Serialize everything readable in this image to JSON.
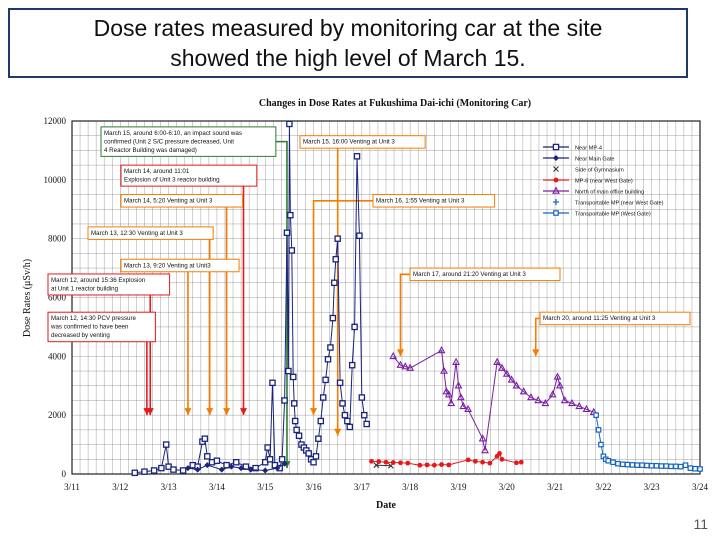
{
  "slide": {
    "title_line1": "Dose rates measured by monitoring car at the site",
    "title_line2": "showed the high level of March 15.",
    "page_number": "11"
  },
  "chart_data": {
    "type": "scatter",
    "title": "Changes in Dose Rates at Fukushima Dai-ichi (Monitoring Car)",
    "xlabel": "Date",
    "ylabel": "Dose Rates (μSv/h)",
    "xlim": [
      "3/11",
      "3/24"
    ],
    "ylim": [
      0,
      12000
    ],
    "grid": true,
    "legend_position": "top-right",
    "xticks": [
      "3/11",
      "3/12",
      "3/13",
      "3/14",
      "3/15",
      "3/16",
      "3/17",
      "3/18",
      "3/19",
      "3/20",
      "3/21",
      "3/22",
      "3/23",
      "3/24"
    ],
    "yticks": [
      0,
      2000,
      4000,
      6000,
      8000,
      10000,
      12000
    ],
    "series": [
      {
        "name": "Near MP-4",
        "color": "#1a237e",
        "marker": "square",
        "points": [
          [
            12.3,
            40
          ],
          [
            12.5,
            80
          ],
          [
            12.7,
            120
          ],
          [
            12.85,
            200
          ],
          [
            12.95,
            1000
          ],
          [
            13.0,
            250
          ],
          [
            13.1,
            150
          ],
          [
            13.3,
            120
          ],
          [
            13.5,
            300
          ],
          [
            13.6,
            250
          ],
          [
            13.7,
            1100
          ],
          [
            13.75,
            1200
          ],
          [
            13.8,
            600
          ],
          [
            13.9,
            400
          ],
          [
            14.0,
            450
          ],
          [
            14.2,
            300
          ],
          [
            14.4,
            400
          ],
          [
            14.6,
            250
          ],
          [
            14.8,
            200
          ],
          [
            15.0,
            400
          ],
          [
            15.05,
            900
          ],
          [
            15.1,
            500
          ],
          [
            15.15,
            3100
          ],
          [
            15.2,
            300
          ],
          [
            15.3,
            200
          ],
          [
            15.35,
            500
          ],
          [
            15.4,
            2500
          ],
          [
            15.45,
            8200
          ],
          [
            15.48,
            3500
          ],
          [
            15.5,
            11900
          ],
          [
            15.52,
            8800
          ],
          [
            15.55,
            7600
          ],
          [
            15.58,
            3300
          ],
          [
            15.6,
            2400
          ],
          [
            15.62,
            1800
          ],
          [
            15.65,
            1500
          ],
          [
            15.7,
            1300
          ],
          [
            15.75,
            1000
          ],
          [
            15.8,
            900
          ],
          [
            15.85,
            800
          ],
          [
            15.9,
            700
          ],
          [
            15.95,
            500
          ],
          [
            16.0,
            400
          ],
          [
            16.05,
            600
          ],
          [
            16.1,
            1200
          ],
          [
            16.15,
            1800
          ],
          [
            16.2,
            2600
          ],
          [
            16.25,
            3200
          ],
          [
            16.3,
            3900
          ],
          [
            16.35,
            4300
          ],
          [
            16.4,
            5300
          ],
          [
            16.43,
            6500
          ],
          [
            16.46,
            7300
          ],
          [
            16.5,
            8000
          ],
          [
            16.55,
            3100
          ],
          [
            16.6,
            2400
          ],
          [
            16.65,
            2000
          ],
          [
            16.7,
            1800
          ],
          [
            16.75,
            1600
          ],
          [
            16.8,
            3700
          ],
          [
            16.85,
            5000
          ],
          [
            16.9,
            10800
          ],
          [
            16.95,
            8100
          ],
          [
            17.0,
            2600
          ],
          [
            17.05,
            2000
          ],
          [
            17.1,
            1700
          ]
        ]
      },
      {
        "name": "Near Main Gate",
        "color": "#1a237e",
        "marker": "diamond",
        "points": [
          [
            13.4,
            200
          ],
          [
            13.6,
            150
          ],
          [
            13.8,
            300
          ],
          [
            14.1,
            150
          ],
          [
            14.3,
            250
          ],
          [
            14.5,
            200
          ],
          [
            14.7,
            150
          ],
          [
            15.0,
            120
          ],
          [
            15.25,
            200
          ],
          [
            15.4,
            350
          ]
        ]
      },
      {
        "name": "Side of Gymnasium",
        "color": "#333333",
        "marker": "x",
        "points": [
          [
            17.3,
            300
          ],
          [
            17.6,
            280
          ]
        ]
      },
      {
        "name": "MP-6 (near West Gate)",
        "color": "#e31a1c",
        "marker": "circle",
        "points": [
          [
            17.2,
            430
          ],
          [
            17.35,
            420
          ],
          [
            17.5,
            400
          ],
          [
            17.65,
            390
          ],
          [
            17.8,
            380
          ],
          [
            17.95,
            370
          ],
          [
            18.2,
            300
          ],
          [
            18.35,
            310
          ],
          [
            18.5,
            300
          ],
          [
            18.65,
            320
          ],
          [
            18.8,
            310
          ],
          [
            19.2,
            480
          ],
          [
            19.35,
            430
          ],
          [
            19.5,
            400
          ],
          [
            19.65,
            370
          ],
          [
            19.8,
            600
          ],
          [
            19.85,
            700
          ],
          [
            19.9,
            500
          ],
          [
            20.2,
            380
          ],
          [
            20.3,
            400
          ]
        ]
      },
      {
        "name": "North of main office building",
        "color": "#7b1fa2",
        "marker": "triangle",
        "points": [
          [
            17.65,
            4000
          ],
          [
            17.8,
            3700
          ],
          [
            17.9,
            3650
          ],
          [
            18.0,
            3600
          ],
          [
            18.65,
            4200
          ],
          [
            18.7,
            3500
          ],
          [
            18.75,
            2800
          ],
          [
            18.8,
            2700
          ],
          [
            18.85,
            2400
          ],
          [
            18.95,
            3800
          ],
          [
            19.0,
            3000
          ],
          [
            19.05,
            2600
          ],
          [
            19.1,
            2300
          ],
          [
            19.2,
            2200
          ],
          [
            19.5,
            1200
          ],
          [
            19.55,
            800
          ],
          [
            19.8,
            3800
          ],
          [
            19.9,
            3600
          ],
          [
            20.0,
            3400
          ],
          [
            20.1,
            3200
          ],
          [
            20.2,
            3000
          ],
          [
            20.35,
            2800
          ],
          [
            20.5,
            2600
          ],
          [
            20.65,
            2500
          ],
          [
            20.8,
            2400
          ],
          [
            20.95,
            2700
          ],
          [
            21.05,
            3300
          ],
          [
            21.1,
            3000
          ],
          [
            21.2,
            2500
          ],
          [
            21.35,
            2400
          ],
          [
            21.5,
            2300
          ],
          [
            21.65,
            2200
          ],
          [
            21.8,
            2100
          ]
        ]
      },
      {
        "name": "Transportable MP (near West Gate)",
        "color": "#1f6fd0",
        "marker": "plus",
        "points": []
      },
      {
        "name": "Transportable MP (West Gate)",
        "color": "#1565c0",
        "marker": "smallsquare",
        "points": [
          [
            21.85,
            2000
          ],
          [
            21.9,
            1500
          ],
          [
            21.95,
            1000
          ],
          [
            22.0,
            600
          ],
          [
            22.05,
            500
          ],
          [
            22.1,
            450
          ],
          [
            22.2,
            400
          ],
          [
            22.3,
            350
          ],
          [
            22.4,
            330
          ],
          [
            22.5,
            320
          ],
          [
            22.6,
            310
          ],
          [
            22.7,
            300
          ],
          [
            22.8,
            300
          ],
          [
            22.9,
            290
          ],
          [
            23.0,
            280
          ],
          [
            23.1,
            280
          ],
          [
            23.2,
            270
          ],
          [
            23.3,
            270
          ],
          [
            23.4,
            260
          ],
          [
            23.5,
            260
          ],
          [
            23.6,
            250
          ],
          [
            23.7,
            300
          ],
          [
            23.8,
            200
          ],
          [
            23.9,
            180
          ],
          [
            24.0,
            170
          ]
        ]
      }
    ],
    "annotations": [
      {
        "lines": [
          "March 15, around 6:00-6:10, an impact sound was",
          "confirmed (Unit 2 S/C pressure decreased, Unit",
          "4 Reactor Building was damaged)"
        ],
        "color": "#2e7d32",
        "arrow_x": 15.45,
        "arrow_y": 200,
        "box_y": 11800
      },
      {
        "lines": [
          "March 15, 16:00 Venting at Unit 3"
        ],
        "color": "#f57c00",
        "arrow_x": 16.5,
        "arrow_y": 1300,
        "box_y": 11500
      },
      {
        "lines": [
          "March 14, around 11:01",
          "Explosion of Unit 3 reactor building"
        ],
        "color": "#e31a1c",
        "arrow_x": 14.55,
        "arrow_y": 2000,
        "box_y": 10500
      },
      {
        "lines": [
          "March 14, 5:20 Venting at Unit 3"
        ],
        "color": "#f57c00",
        "arrow_x": 14.2,
        "arrow_y": 2000,
        "box_y": 9500
      },
      {
        "lines": [
          "March 16, 1:55 Venting at Unit 3"
        ],
        "color": "#f57c00",
        "arrow_x": 16.0,
        "arrow_y": 2000,
        "box_y": 9500
      },
      {
        "lines": [
          "March 13, 12:30 Venting at Unit 3"
        ],
        "color": "#f57c00",
        "arrow_x": 13.85,
        "arrow_y": 2000,
        "box_y": 8400
      },
      {
        "lines": [
          "March 13, 9:20 Venting at Unit3"
        ],
        "color": "#f57c00",
        "arrow_x": 13.4,
        "arrow_y": 2000,
        "box_y": 7300
      },
      {
        "lines": [
          "March 17, around 21:20 Venting at Unit 3"
        ],
        "color": "#f57c00",
        "arrow_x": 17.8,
        "arrow_y": 4000,
        "box_y": 7000
      },
      {
        "lines": [
          "March 12, around 15:36 Explosion",
          "at Unit 1 reactor building"
        ],
        "color": "#e31a1c",
        "arrow_x": 12.62,
        "arrow_y": 2000,
        "box_y": 6800
      },
      {
        "lines": [
          "March 12, 14:30 PCV pressure",
          "was confirmed to have been",
          "decreased by venting"
        ],
        "color": "#e31a1c",
        "arrow_x": 12.55,
        "arrow_y": 2000,
        "box_y": 5500
      },
      {
        "lines": [
          "March 20, around 11:25 Venting at Unit 3"
        ],
        "color": "#f57c00",
        "arrow_x": 20.6,
        "arrow_y": 4000,
        "box_y": 5500
      }
    ]
  }
}
